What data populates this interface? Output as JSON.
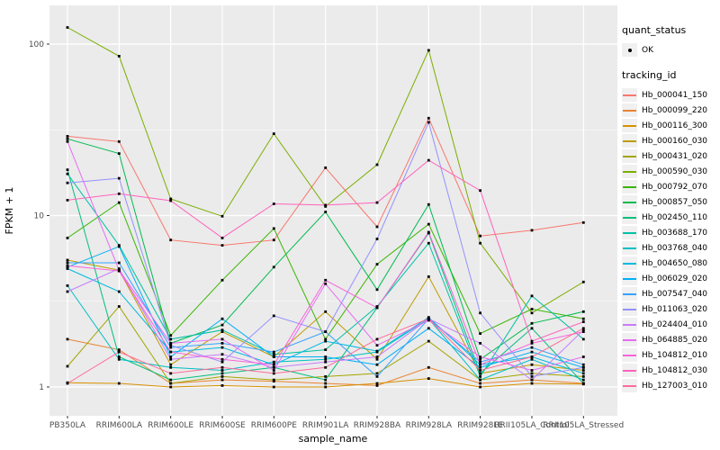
{
  "figure": {
    "background": "#FFFFFF"
  },
  "panel": {
    "background": "#EBEBEB",
    "grid_color": "#FFFFFF"
  },
  "legend": {
    "quant_status": {
      "title": "quant_status",
      "items": [
        {
          "label": "OK",
          "marker": "black-point"
        }
      ]
    },
    "tracking_id": {
      "title": "tracking_id"
    }
  },
  "chart_data": {
    "type": "line",
    "title": "",
    "xlabel": "sample_name",
    "ylabel": "FPKM + 1",
    "yscale": "log10",
    "ylim": [
      1,
      130
    ],
    "y_ticks": [
      1,
      10,
      100
    ],
    "y_minor_ticks": [
      3.1623,
      31.623
    ],
    "grid": true,
    "legend_position": "right",
    "marker": "black-square",
    "categories": [
      "PB350LA",
      "RRIM600LA",
      "RRIM600LE",
      "RRIM600SE",
      "RRIM600PE",
      "RRIM901LA",
      "RRIM928BA",
      "RRIM928LA",
      "RRIM928LE",
      "RRII105LA_Control",
      "RRII105LA_Stressed"
    ],
    "series": [
      {
        "name": "Hb_000041_150",
        "color": "#F8766D",
        "values": [
          29,
          27,
          7.2,
          6.7,
          7.2,
          19,
          8.6,
          37,
          7.6,
          8.2,
          9.1
        ]
      },
      {
        "name": "Hb_000099_220",
        "color": "#EA8331",
        "values": [
          1.9,
          1.65,
          1.05,
          1.1,
          1.08,
          1.05,
          1.02,
          1.3,
          1.05,
          1.1,
          1.05
        ]
      },
      {
        "name": "Hb_000116_300",
        "color": "#D89000",
        "values": [
          1.06,
          1.05,
          1.0,
          1.02,
          1.0,
          1.0,
          1.05,
          1.12,
          1.0,
          1.05,
          1.04
        ]
      },
      {
        "name": "Hb_000160_030",
        "color": "#C09B00",
        "values": [
          5.5,
          4.8,
          1.35,
          2.1,
          1.5,
          2.75,
          1.45,
          4.4,
          1.2,
          1.35,
          1.25
        ]
      },
      {
        "name": "Hb_000431_020",
        "color": "#A3A500",
        "values": [
          1.32,
          2.95,
          1.05,
          1.15,
          1.1,
          1.15,
          1.2,
          1.85,
          1.1,
          1.2,
          1.15
        ]
      },
      {
        "name": "Hb_000590_030",
        "color": "#7CAE00",
        "values": [
          125,
          85,
          12.5,
          9.9,
          30,
          11.3,
          19.8,
          92,
          6.9,
          2.7,
          4.1
        ]
      },
      {
        "name": "Hb_000792_070",
        "color": "#39B600",
        "values": [
          7.4,
          11.9,
          2.0,
          4.2,
          8.4,
          1.9,
          5.2,
          8.9,
          2.05,
          2.85,
          2.5
        ]
      },
      {
        "name": "Hb_000857_050",
        "color": "#00BB4E",
        "values": [
          28,
          23,
          1.8,
          2.3,
          5.0,
          10.5,
          3.7,
          11.6,
          1.45,
          2.35,
          2.75
        ]
      },
      {
        "name": "Hb_002450_110",
        "color": "#00BF7D",
        "values": [
          18.5,
          1.5,
          1.1,
          1.2,
          1.3,
          1.1,
          2.9,
          7.9,
          1.2,
          2.2,
          1.05
        ]
      },
      {
        "name": "Hb_003688_170",
        "color": "#00C1A3",
        "values": [
          17.5,
          6.7,
          1.9,
          2.15,
          1.55,
          1.65,
          2.95,
          6.9,
          1.15,
          3.4,
          1.9
        ]
      },
      {
        "name": "Hb_003768_040",
        "color": "#00BFC4",
        "values": [
          3.9,
          1.45,
          1.3,
          1.25,
          1.4,
          1.45,
          1.6,
          2.5,
          1.1,
          1.45,
          1.1
        ]
      },
      {
        "name": "Hb_004650_080",
        "color": "#00BAE0",
        "values": [
          4.9,
          3.6,
          1.6,
          1.7,
          1.35,
          1.85,
          1.62,
          2.55,
          1.35,
          1.5,
          1.2
        ]
      },
      {
        "name": "Hb_006029_020",
        "color": "#00B0F6",
        "values": [
          5.0,
          6.6,
          1.5,
          2.5,
          1.5,
          1.5,
          1.35,
          2.2,
          1.3,
          1.6,
          1.3
        ]
      },
      {
        "name": "Hb_007547_040",
        "color": "#35A2FF",
        "values": [
          5.3,
          5.3,
          1.7,
          1.8,
          1.6,
          2.1,
          1.15,
          2.5,
          1.4,
          1.7,
          1.35
        ]
      },
      {
        "name": "Hb_011063_020",
        "color": "#9590FF",
        "values": [
          15.5,
          16.5,
          1.75,
          1.4,
          2.6,
          2.1,
          7.3,
          35,
          2.7,
          1.15,
          1.3
        ]
      },
      {
        "name": "Hb_024404_010",
        "color": "#C77CFF",
        "values": [
          3.6,
          4.9,
          1.45,
          1.55,
          1.3,
          1.4,
          1.5,
          2.5,
          1.8,
          1.1,
          2.15
        ]
      },
      {
        "name": "Hb_064885_020",
        "color": "#E76BF3",
        "values": [
          27,
          4.8,
          1.8,
          1.9,
          1.25,
          4.0,
          1.75,
          2.45,
          1.5,
          1.25,
          1.5
        ]
      },
      {
        "name": "Hb_104812_010",
        "color": "#FA62DB",
        "values": [
          5.1,
          4.75,
          1.6,
          1.45,
          1.35,
          4.2,
          2.9,
          8.0,
          1.35,
          1.8,
          2.1
        ]
      },
      {
        "name": "Hb_104812_030",
        "color": "#FF62BC",
        "values": [
          12.3,
          13.4,
          12.2,
          7.4,
          11.7,
          11.5,
          11.9,
          21,
          14,
          1.85,
          2.4
        ]
      },
      {
        "name": "Hb_127003_010",
        "color": "#FF6A98",
        "values": [
          1.05,
          1.6,
          1.2,
          1.3,
          1.2,
          1.3,
          1.9,
          2.5,
          1.25,
          1.5,
          2.2
        ]
      }
    ]
  }
}
